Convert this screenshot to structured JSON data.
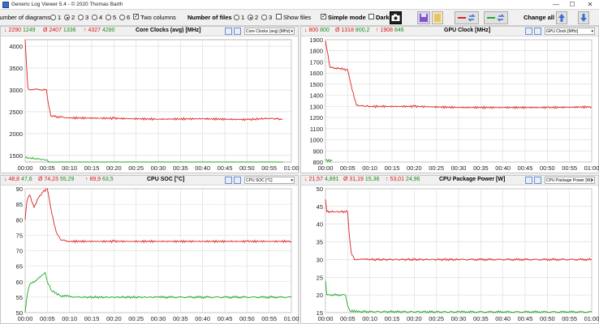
{
  "window": {
    "title": "Generic Log Viewer 5.4 - © 2020 Thomas Barth",
    "minimize": "—",
    "maximize": "☐",
    "close": "✕"
  },
  "toolbar": {
    "diagrams_label": "Number of diagrams",
    "diagram_options": [
      "1",
      "2",
      "3",
      "4",
      "5",
      "6"
    ],
    "diagram_selected": "2",
    "two_columns_label": "Two columns",
    "two_columns_checked": true,
    "files_label": "Number of files",
    "file_options": [
      "1",
      "2",
      "3"
    ],
    "file_selected": "2",
    "show_files_label": "Show files",
    "show_files_checked": false,
    "simple_mode_label": "Simple mode",
    "simple_mode_checked": true,
    "dark_label": "Dark",
    "dark_checked": false,
    "change_all_label": "Change all",
    "colors": {
      "red": "#dd2222",
      "green": "#22aa22",
      "blue": "#3b6fd1"
    }
  },
  "chart_data": [
    {
      "type": "line",
      "title": "Core Clocks (avg) [MHz]",
      "dropdown": "Core Clocks (avg) [MHz]",
      "stats": {
        "s1": {
          "min": "2290",
          "avg": "1249"
        },
        "s2": {
          "min": "2407",
          "avg": "1336"
        },
        "s3": {
          "max": "4327",
          "avg": "4280"
        }
      },
      "x_ticks": [
        "00:00",
        "00:05",
        "00:10",
        "00:15",
        "00:20",
        "00:25",
        "00:30",
        "00:35",
        "00:40",
        "00:45",
        "00:50",
        "00:55",
        "01:00"
      ],
      "x_range": [
        0,
        60
      ],
      "ylim": [
        1350,
        4150
      ],
      "y_ticks": [
        1500,
        2000,
        2500,
        3000,
        3500,
        4000
      ],
      "series": [
        {
          "color": "#dd2222",
          "points": [
            [
              0,
              4150
            ],
            [
              0.3,
              3600
            ],
            [
              0.6,
              3050
            ],
            [
              1,
              3000
            ],
            [
              2.5,
              3020
            ],
            [
              4,
              2990
            ],
            [
              4.8,
              3010
            ],
            [
              5.2,
              2700
            ],
            [
              5.8,
              2400
            ],
            [
              10,
              2360
            ],
            [
              20,
              2350
            ],
            [
              30,
              2330
            ],
            [
              40,
              2340
            ],
            [
              50,
              2320
            ],
            [
              55,
              2350
            ],
            [
              58,
              2330
            ]
          ]
        },
        {
          "color": "#22aa22",
          "points": [
            [
              0,
              1450
            ],
            [
              0.5,
              1430
            ],
            [
              1,
              1440
            ],
            [
              4,
              1410
            ],
            [
              5,
              1390
            ],
            [
              5.3,
              1300
            ],
            [
              10,
              1320
            ],
            [
              20,
              1320
            ],
            [
              30,
              1330
            ],
            [
              40,
              1320
            ],
            [
              50,
              1320
            ],
            [
              58,
              1310
            ]
          ]
        }
      ]
    },
    {
      "type": "line",
      "title": "GPU Clock [MHz]",
      "dropdown": "GPU Clock [MHz]",
      "stats": {
        "s1": {
          "min": "800",
          "avg": "800"
        },
        "s2": {
          "min": "1318",
          "avg": "800,2"
        },
        "s3": {
          "max": "1908",
          "avg": "846"
        }
      },
      "x_ticks": [
        "00:00",
        "00:05",
        "00:10",
        "00:15",
        "00:20",
        "00:25",
        "00:30",
        "00:35",
        "00:40",
        "00:45",
        "00:50",
        "00:55",
        "01:00"
      ],
      "x_range": [
        0,
        60
      ],
      "ylim": [
        800,
        1900
      ],
      "y_ticks": [
        800,
        900,
        1000,
        1100,
        1200,
        1300,
        1400,
        1500,
        1600,
        1700,
        1800,
        1900
      ],
      "series": [
        {
          "color": "#dd2222",
          "points": [
            [
              0,
              1890
            ],
            [
              0.3,
              1820
            ],
            [
              1,
              1650
            ],
            [
              3,
              1640
            ],
            [
              5,
              1630
            ],
            [
              6,
              1450
            ],
            [
              7,
              1310
            ],
            [
              10,
              1300
            ],
            [
              20,
              1300
            ],
            [
              30,
              1290
            ],
            [
              40,
              1290
            ],
            [
              50,
              1290
            ],
            [
              60,
              1295
            ]
          ]
        },
        {
          "color": "#22aa22",
          "points": [
            [
              0,
              815
            ],
            [
              1.5,
              810
            ]
          ]
        }
      ]
    },
    {
      "type": "line",
      "title": "CPU SOC [°C]",
      "dropdown": "CPU SOC [°C]",
      "stats": {
        "s1": {
          "min": "48,8",
          "avg": "47,6"
        },
        "s2": {
          "min": "74,23",
          "avg": "55,29"
        },
        "s3": {
          "max": "89,9",
          "avg": "63,5"
        }
      },
      "x_ticks": [
        "00:00",
        "00:05",
        "00:10",
        "00:15",
        "00:20",
        "00:25",
        "00:30",
        "00:35",
        "00:40",
        "00:45",
        "00:50",
        "00:55",
        "01:00"
      ],
      "x_range": [
        0,
        60
      ],
      "ylim": [
        50,
        90
      ],
      "y_ticks": [
        50,
        55,
        60,
        65,
        70,
        75,
        80,
        85,
        90
      ],
      "series": [
        {
          "color": "#dd2222",
          "points": [
            [
              0,
              80
            ],
            [
              0.4,
              86
            ],
            [
              1,
              88
            ],
            [
              2,
              84
            ],
            [
              3,
              87
            ],
            [
              4,
              89
            ],
            [
              5,
              90
            ],
            [
              6,
              82
            ],
            [
              7,
              76
            ],
            [
              8,
              73.5
            ],
            [
              10,
              73
            ],
            [
              20,
              73
            ],
            [
              30,
              73
            ],
            [
              40,
              73
            ],
            [
              50,
              73
            ],
            [
              60,
              73
            ]
          ]
        },
        {
          "color": "#22aa22",
          "points": [
            [
              0,
              50
            ],
            [
              0.5,
              56
            ],
            [
              1,
              59
            ],
            [
              3,
              61
            ],
            [
              4.5,
              63
            ],
            [
              5,
              60
            ],
            [
              6,
              57
            ],
            [
              8,
              55.5
            ],
            [
              12,
              55
            ],
            [
              30,
              55
            ],
            [
              60,
              55
            ]
          ]
        }
      ]
    },
    {
      "type": "line",
      "title": "CPU Package Power [W]",
      "dropdown": "CPU Package Power [W]",
      "stats": {
        "s1": {
          "min": "21,57",
          "avg": "4,891"
        },
        "s2": {
          "min": "31,19",
          "avg": "15,36"
        },
        "s3": {
          "max": "53,01",
          "avg": "24,96"
        }
      },
      "x_ticks": [
        "00:00",
        "00:05",
        "00:10",
        "00:15",
        "00:20",
        "00:25",
        "00:30",
        "00:35",
        "00:40",
        "00:45",
        "00:50",
        "00:55",
        "01:00"
      ],
      "x_range": [
        0,
        60
      ],
      "ylim": [
        15,
        50
      ],
      "y_ticks": [
        15,
        20,
        25,
        30,
        35,
        40,
        45,
        50
      ],
      "series": [
        {
          "color": "#dd2222",
          "points": [
            [
              0,
              47
            ],
            [
              0.3,
              43.5
            ],
            [
              5,
              43.5
            ],
            [
              5.3,
              38
            ],
            [
              5.8,
              32
            ],
            [
              6.5,
              30
            ],
            [
              10,
              30
            ],
            [
              30,
              30
            ],
            [
              60,
              30
            ]
          ]
        },
        {
          "color": "#22aa22",
          "points": [
            [
              0,
              24
            ],
            [
              0.3,
              20
            ],
            [
              4.5,
              20
            ],
            [
              5,
              17
            ],
            [
              5.5,
              15.5
            ],
            [
              8,
              15.3
            ],
            [
              30,
              15.2
            ],
            [
              60,
              15.2
            ]
          ]
        }
      ]
    }
  ]
}
